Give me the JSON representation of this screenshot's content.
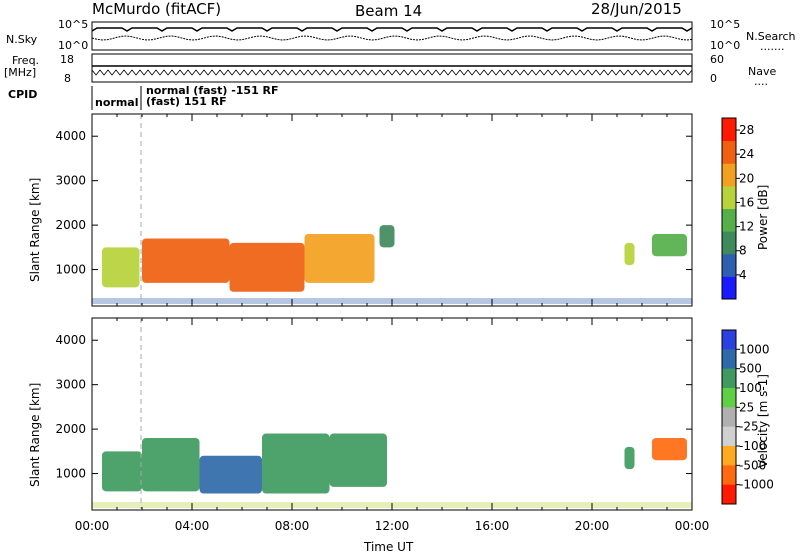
{
  "header": {
    "station": "McMurdo (fitACF)",
    "beam": "Beam 14",
    "date": "28/Jun/2015"
  },
  "top_panels": {
    "nsky_label": "N.Sky",
    "nsky_ticks": [
      "10^5",
      "10^0"
    ],
    "nsearch_label": "N.Search",
    "nsearch_ticks": [
      "10^5",
      "10^0"
    ],
    "freq_label": "Freq.",
    "freq_unit": "[MHz]",
    "freq_ticks": [
      "18",
      "8"
    ],
    "nave_label": "Nave",
    "nave_ticks": [
      "60",
      "0"
    ],
    "cpid_label": "CPID",
    "cpid_entries": [
      "normal",
      "normal (fast) -151 RF",
      "(fast) 151 RF"
    ]
  },
  "colors": {
    "power_scale": [
      "#1a1aff",
      "#2f5fb0",
      "#3f8a5c",
      "#56b04a",
      "#b7d23a",
      "#f3a020",
      "#f06010",
      "#ff1a00"
    ],
    "velocity_scale": [
      "#ff1a00",
      "#ff6a10",
      "#ffaa20",
      "#d0d0d0",
      "#b0b0b0",
      "#5fd046",
      "#3f9a60",
      "#2f6aa8",
      "#2a40e0"
    ]
  },
  "chart_data": [
    {
      "type": "heatmap",
      "panel": "power",
      "ylabel": "Slant Range [km]",
      "xlabel": "Time UT",
      "x_ticks": [
        "00:00",
        "04:00",
        "08:00",
        "12:00",
        "16:00",
        "20:00",
        "00:00"
      ],
      "xlim_hours": [
        0,
        24
      ],
      "y_ticks": [
        1000,
        2000,
        3000,
        4000
      ],
      "ylim": [
        180,
        4500
      ],
      "colorbar": {
        "label": "Power [dB]",
        "ticks": [
          "4",
          "8",
          "12",
          "16",
          "20",
          "24",
          "28"
        ],
        "range": [
          0,
          30
        ]
      },
      "echo_regions": [
        {
          "t_start": 0.4,
          "t_end": 1.9,
          "r_min": 600,
          "r_max": 1500,
          "value_dB": 18
        },
        {
          "t_start": 2.0,
          "t_end": 5.5,
          "r_min": 700,
          "r_max": 1700,
          "value_dB": 24
        },
        {
          "t_start": 5.5,
          "t_end": 8.5,
          "r_min": 500,
          "r_max": 1600,
          "value_dB": 26
        },
        {
          "t_start": 8.5,
          "t_end": 11.3,
          "r_min": 700,
          "r_max": 1800,
          "value_dB": 22
        },
        {
          "t_start": 11.5,
          "t_end": 12.1,
          "r_min": 1500,
          "r_max": 2000,
          "value_dB": 10
        },
        {
          "t_start": 21.3,
          "t_end": 21.7,
          "r_min": 1100,
          "r_max": 1600,
          "value_dB": 16
        },
        {
          "t_start": 22.4,
          "t_end": 23.8,
          "r_min": 1300,
          "r_max": 1800,
          "value_dB": 12
        }
      ]
    },
    {
      "type": "heatmap",
      "panel": "velocity",
      "ylabel": "Slant Range [km]",
      "xlabel": "Time UT",
      "x_ticks": [
        "00:00",
        "04:00",
        "08:00",
        "12:00",
        "16:00",
        "20:00",
        "00:00"
      ],
      "xlim_hours": [
        0,
        24
      ],
      "y_ticks": [
        1000,
        2000,
        3000,
        4000
      ],
      "ylim": [
        180,
        4500
      ],
      "colorbar": {
        "label": "Velocity [m s-1]",
        "ticks": [
          "1000",
          "500",
          "100",
          "25",
          "-25",
          "-100",
          "-500",
          "-1000"
        ]
      },
      "echo_regions": [
        {
          "t_start": 0.4,
          "t_end": 2.0,
          "r_min": 600,
          "r_max": 1500,
          "value_ms": 150
        },
        {
          "t_start": 2.0,
          "t_end": 4.3,
          "r_min": 600,
          "r_max": 1800,
          "value_ms": 300
        },
        {
          "t_start": 4.3,
          "t_end": 6.8,
          "r_min": 550,
          "r_max": 1400,
          "value_ms": 900
        },
        {
          "t_start": 6.8,
          "t_end": 9.5,
          "r_min": 550,
          "r_max": 1900,
          "value_ms": 250
        },
        {
          "t_start": 9.5,
          "t_end": 11.8,
          "r_min": 700,
          "r_max": 1900,
          "value_ms": 150
        },
        {
          "t_start": 21.3,
          "t_end": 21.7,
          "r_min": 1100,
          "r_max": 1600,
          "value_ms": 120
        },
        {
          "t_start": 22.4,
          "t_end": 23.8,
          "r_min": 1300,
          "r_max": 1800,
          "value_ms": -200
        }
      ]
    }
  ]
}
